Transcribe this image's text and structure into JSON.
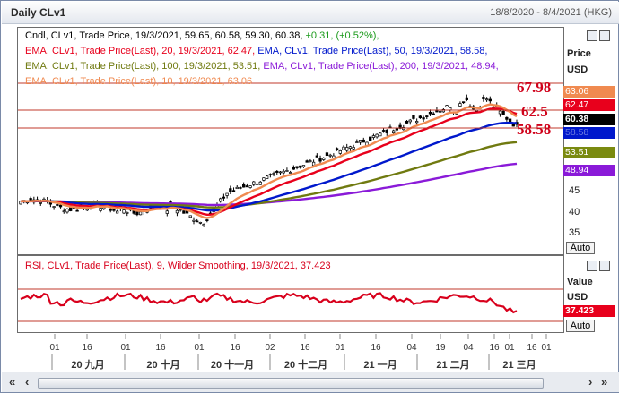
{
  "window": {
    "title": "Daily CLv1",
    "date_range": "18/8/2020 - 8/4/2021 (HKG)"
  },
  "price_panel": {
    "legend": [
      {
        "text": "Cndl, CLv1, Trade Price, 19/3/2021, 59.65, 60.58, 59.30, 60.38,",
        "color": "#000000"
      },
      {
        "text": "+0.31, (+0.52%),",
        "color": "#1a9a1a"
      },
      {
        "text": "EMA, CLv1, Trade Price(Last),  20,  19/3/2021, 62.47,",
        "color": "#e8001c"
      },
      {
        "text": "EMA, CLv1, Trade Price(Last),  50,  19/3/2021, 58.58,",
        "color": "#0018cc"
      },
      {
        "text": "EMA, CLv1, Trade Price(Last),  100,  19/3/2021, 53.51,",
        "color": "#707a10"
      },
      {
        "text": "EMA, CLv1, Trade Price(Last),  200,  19/3/2021, 48.94,",
        "color": "#8a1ad8"
      },
      {
        "text": "EMA, CLv1, Trade Price(Last),  10,  19/3/2021, 63.06",
        "color": "#f08a50"
      }
    ],
    "annotations": {
      "high": "67.98",
      "mid": "62.5",
      "low": "58.58"
    },
    "axis_title": "Price",
    "axis_currency": "USD",
    "tags": [
      {
        "label": "63.06",
        "bg": "#f08a50",
        "fg": "#ffffff"
      },
      {
        "label": "62.47",
        "bg": "#e8001c",
        "fg": "#ffffff"
      },
      {
        "label": "60.38",
        "bg": "#000000",
        "fg": "#ffffff"
      },
      {
        "label": "58.58",
        "bg": "#0018cc",
        "fg": "#6a7ae0"
      },
      {
        "label": "53.51",
        "bg": "#7a8a10",
        "fg": "#ffffff"
      },
      {
        "label": "48.94",
        "bg": "#8a1ad8",
        "fg": "#ffffff"
      }
    ],
    "ticks": [
      "45",
      "40",
      "35"
    ],
    "auto_label": "Auto"
  },
  "rsi_panel": {
    "legend": "RSI, CLv1, Trade Price(Last),  9,  Wilder Smoothing,  19/3/2021,  37.423",
    "axis_title": "Value",
    "axis_currency": "USD",
    "tag": "37.423",
    "auto_label": "Auto"
  },
  "x_axis": {
    "days": [
      "01",
      "16",
      "01",
      "16",
      "01",
      "16",
      "02",
      "16",
      "01",
      "16",
      "04",
      "19",
      "04",
      "16",
      "01",
      "16",
      "01"
    ],
    "months": [
      "20 九月",
      "20 十月",
      "20 十一月",
      "20 十二月",
      "21 一月",
      "21 二月",
      "21 三月"
    ]
  },
  "colors": {
    "candle": "#000000",
    "ema20": "#e8001c",
    "ema50": "#0018cc",
    "ema100": "#707a10",
    "ema200": "#8a1ad8",
    "ema10": "#f08a50",
    "rsi": "#d8001c",
    "hline": "#c0392b"
  }
}
